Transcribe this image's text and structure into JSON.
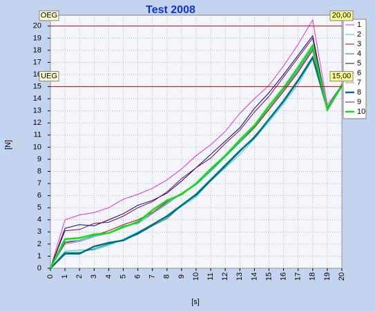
{
  "chart_data": {
    "type": "line",
    "title": "Test 2008",
    "x_label": "[s]",
    "y_label": "[N]",
    "x": [
      0,
      1,
      2,
      3,
      4,
      5,
      6,
      7,
      8,
      9,
      10,
      11,
      12,
      13,
      14,
      15,
      16,
      17,
      18,
      19,
      20
    ],
    "xlim": [
      0,
      20
    ],
    "xticks": [
      0,
      1,
      2,
      3,
      4,
      5,
      6,
      7,
      8,
      9,
      10,
      11,
      12,
      13,
      14,
      15,
      16,
      17,
      18,
      19,
      20
    ],
    "ylim": [
      0,
      20.9
    ],
    "yticks": [
      0,
      1,
      2,
      3,
      4,
      5,
      6,
      7,
      8,
      9,
      10,
      11,
      12,
      13,
      14,
      15,
      16,
      17,
      18,
      19,
      20
    ],
    "grid": true,
    "legend": "right",
    "limits": [
      {
        "label": "OEG",
        "value": 20,
        "value_label": "20,00",
        "color": "#d00000"
      },
      {
        "label": "UEG",
        "value": 15,
        "value_label": "15,00",
        "color": "#d00000"
      }
    ],
    "series": [
      {
        "name": "1",
        "color": "#e030e0",
        "line_width": 1,
        "values": [
          0,
          4.0,
          4.4,
          4.6,
          5.0,
          5.7,
          6.1,
          6.6,
          7.3,
          8.2,
          9.3,
          10.2,
          11.3,
          12.8,
          14.0,
          15.1,
          16.7,
          18.5,
          20.5,
          13.5,
          15.1
        ]
      },
      {
        "name": "2",
        "color": "#20c8f0",
        "line_width": 1,
        "values": [
          0,
          1.4,
          1.5,
          1.5,
          1.9,
          2.4,
          3.0,
          3.6,
          4.2,
          5.1,
          5.9,
          7.2,
          8.3,
          9.4,
          10.7,
          12.1,
          13.6,
          15.2,
          17.3,
          13.1,
          15.0
        ]
      },
      {
        "name": "3",
        "color": "#b00000",
        "line_width": 1,
        "values": [
          0,
          2.1,
          2.3,
          2.7,
          3.1,
          3.6,
          4.0,
          4.6,
          5.5,
          6.2,
          7.0,
          8.1,
          9.2,
          10.4,
          11.6,
          13.1,
          14.6,
          16.2,
          18.0,
          13.0,
          15.0
        ]
      },
      {
        "name": "4",
        "color": "#008060",
        "line_width": 1,
        "values": [
          0,
          1.3,
          1.3,
          1.6,
          2.0,
          2.3,
          2.8,
          3.5,
          4.1,
          5.2,
          6.0,
          7.2,
          8.4,
          9.6,
          10.9,
          12.3,
          13.9,
          15.6,
          17.5,
          13.2,
          15.1
        ]
      },
      {
        "name": "5",
        "color": "#000080",
        "line_width": 1,
        "values": [
          0,
          3.3,
          3.6,
          3.5,
          4.0,
          4.5,
          5.2,
          5.6,
          6.2,
          7.2,
          8.3,
          9.4,
          10.5,
          11.6,
          13.2,
          14.5,
          16.0,
          17.6,
          19.2,
          13.2,
          15.2
        ]
      },
      {
        "name": "6",
        "color": "#00b0b0",
        "line_width": 1,
        "values": [
          0,
          2.2,
          2.3,
          2.7,
          2.9,
          3.5,
          3.7,
          4.5,
          5.4,
          6.1,
          6.9,
          8.0,
          9.2,
          10.4,
          11.7,
          13.2,
          14.8,
          16.4,
          18.2,
          13.0,
          15.1
        ]
      },
      {
        "name": "7",
        "color": "#8090b0",
        "line_width": 1,
        "values": [
          0,
          2.0,
          2.2,
          2.6,
          2.9,
          3.4,
          3.9,
          4.5,
          5.3,
          6.2,
          7.0,
          8.1,
          9.3,
          10.5,
          11.8,
          13.2,
          14.7,
          16.3,
          18.1,
          13.0,
          15.0
        ]
      },
      {
        "name": "8",
        "color": "#007080",
        "line_width": 2.5,
        "values": [
          0,
          1.2,
          1.2,
          1.8,
          2.1,
          2.3,
          2.9,
          3.6,
          4.3,
          5.2,
          6.1,
          7.3,
          8.5,
          9.7,
          10.8,
          12.3,
          13.8,
          15.5,
          17.4,
          13.2,
          15.1
        ]
      },
      {
        "name": "9",
        "color": "#800050",
        "line_width": 1,
        "values": [
          0,
          3.1,
          3.2,
          3.7,
          3.8,
          4.3,
          5.0,
          5.5,
          6.3,
          7.4,
          8.3,
          9.1,
          10.3,
          11.4,
          12.9,
          14.2,
          15.8,
          17.4,
          19.0,
          13.1,
          15.0
        ]
      },
      {
        "name": "10",
        "color": "#10e010",
        "line_width": 2.5,
        "values": [
          0,
          2.4,
          2.5,
          2.8,
          2.9,
          3.4,
          3.8,
          4.8,
          5.6,
          6.1,
          7.0,
          8.2,
          9.3,
          10.6,
          11.8,
          13.4,
          14.9,
          16.6,
          18.4,
          13.1,
          15.1
        ]
      }
    ]
  }
}
